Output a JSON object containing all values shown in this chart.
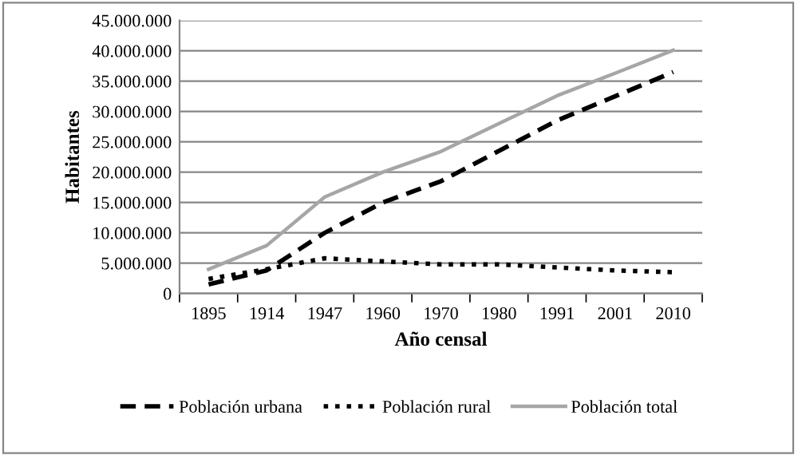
{
  "chart_data": {
    "type": "line",
    "xlabel": "Año censal",
    "ylabel": "Habitantes",
    "categories": [
      "1895",
      "1914",
      "1947",
      "1960",
      "1970",
      "1980",
      "1991",
      "2001",
      "2010"
    ],
    "series": [
      {
        "name": "Población urbana",
        "color": "#000000",
        "line_style": "dashed",
        "values": [
          1500000,
          3800000,
          10000000,
          15000000,
          18500000,
          23500000,
          28500000,
          32500000,
          36500000
        ]
      },
      {
        "name": "Población rural",
        "color": "#000000",
        "line_style": "dotted",
        "values": [
          2400000,
          4000000,
          5800000,
          5300000,
          4800000,
          4800000,
          4300000,
          3800000,
          3500000
        ]
      },
      {
        "name": "Población total",
        "color": "#a6a6a6",
        "line_style": "solid",
        "values": [
          4000000,
          7900000,
          15900000,
          20000000,
          23400000,
          28000000,
          32600000,
          36300000,
          40100000
        ]
      }
    ],
    "ylim": [
      0,
      45000000
    ],
    "yticks": [
      0,
      {
        "value": 5000000,
        "label": "5.000.000"
      },
      {
        "value": 10000000,
        "label": "10.000.000"
      },
      {
        "value": 15000000,
        "label": "15.000.000"
      },
      {
        "value": 20000000,
        "label": "20.000.000"
      },
      {
        "value": 25000000,
        "label": "25.000.000"
      },
      {
        "value": 30000000,
        "label": "30.000.000"
      },
      {
        "value": 35000000,
        "label": "35.000.000"
      },
      {
        "value": 40000000,
        "label": "40.000.000"
      },
      {
        "value": 45000000,
        "label": "45.000.000"
      }
    ],
    "grid": "y",
    "legend": "bottom",
    "marker": "none"
  }
}
